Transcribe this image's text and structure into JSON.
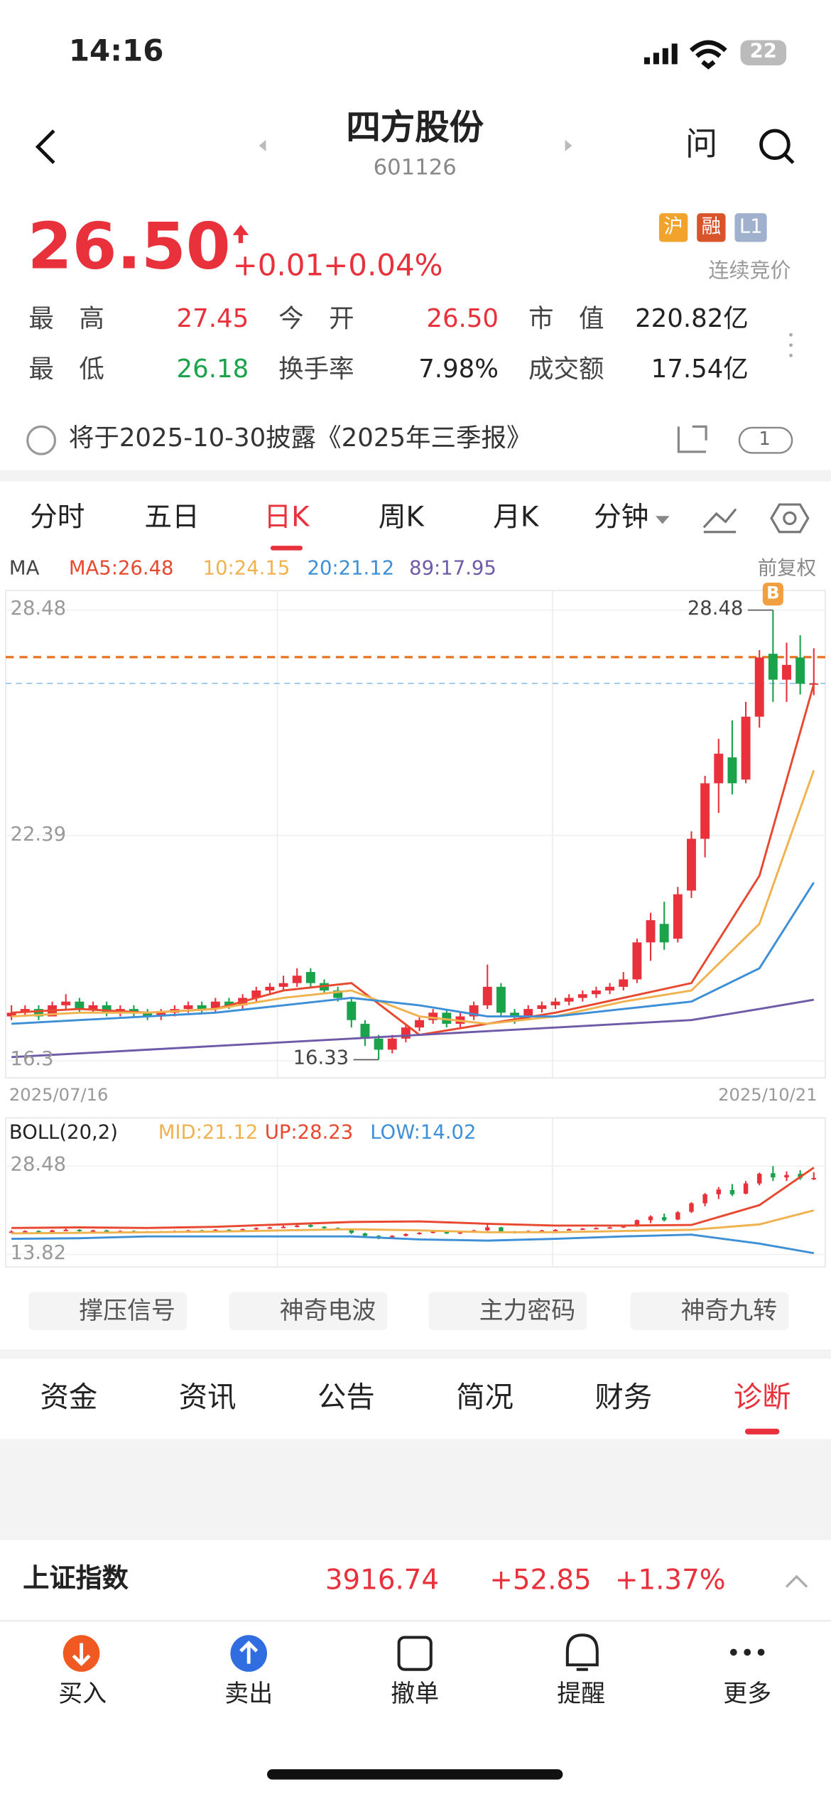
{
  "status": {
    "time": "14:16",
    "battery": "22"
  },
  "header": {
    "title": "四方股份",
    "code": "601126",
    "ask": "问"
  },
  "quote": {
    "price": "26.50",
    "change": "+0.01",
    "change_pct": "+0.04%",
    "badges": [
      "沪",
      "融",
      "L1"
    ],
    "status": "连续竞价",
    "fields": [
      {
        "label": "最　高",
        "value": "27.45"
      },
      {
        "label": "今　开",
        "value": "26.50"
      },
      {
        "label": "市　值",
        "value": "220.82亿"
      },
      {
        "label": "最　低",
        "value": "26.18"
      },
      {
        "label": "换手率",
        "value": "7.98%"
      },
      {
        "label": "成交额",
        "value": "17.54亿"
      }
    ]
  },
  "notice": {
    "text": "将于2025-10-30披露《2025年三季报》",
    "badge": "1"
  },
  "tabs": [
    "分时",
    "五日",
    "日K",
    "周K",
    "月K",
    "分钟"
  ],
  "chart_data": {
    "type": "candlestick",
    "ma_label": "MA",
    "adjust": "前复权",
    "up_color": "#e8313b",
    "down_color": "#1aa34a",
    "ylim": [
      15.84,
      29.01
    ],
    "yticks": [
      28.48,
      22.39,
      16.3
    ],
    "x": [
      "2025/07/16",
      "2025/10/21"
    ],
    "candles": [
      [
        17.5,
        17.8,
        17.4,
        17.6
      ],
      [
        17.6,
        17.8,
        17.5,
        17.7
      ],
      [
        17.7,
        17.8,
        17.4,
        17.5
      ],
      [
        17.5,
        17.9,
        17.5,
        17.8
      ],
      [
        17.8,
        18.1,
        17.7,
        17.9
      ],
      [
        17.9,
        18.0,
        17.6,
        17.7
      ],
      [
        17.7,
        17.9,
        17.6,
        17.8
      ],
      [
        17.8,
        17.9,
        17.5,
        17.6
      ],
      [
        17.6,
        17.8,
        17.5,
        17.7
      ],
      [
        17.7,
        17.8,
        17.5,
        17.6
      ],
      [
        17.6,
        17.7,
        17.4,
        17.5
      ],
      [
        17.5,
        17.7,
        17.4,
        17.6
      ],
      [
        17.6,
        17.8,
        17.5,
        17.7
      ],
      [
        17.7,
        17.9,
        17.6,
        17.8
      ],
      [
        17.8,
        17.9,
        17.6,
        17.7
      ],
      [
        17.7,
        18.0,
        17.6,
        17.9
      ],
      [
        17.9,
        18.0,
        17.7,
        17.8
      ],
      [
        17.8,
        18.1,
        17.7,
        18.0
      ],
      [
        18.0,
        18.3,
        17.9,
        18.2
      ],
      [
        18.2,
        18.4,
        18.1,
        18.3
      ],
      [
        18.3,
        18.6,
        18.2,
        18.4
      ],
      [
        18.4,
        18.8,
        18.3,
        18.6
      ],
      [
        18.7,
        18.8,
        18.3,
        18.4
      ],
      [
        18.4,
        18.5,
        18.1,
        18.2
      ],
      [
        18.2,
        18.3,
        17.9,
        18.0
      ],
      [
        17.9,
        18.0,
        17.2,
        17.4
      ],
      [
        17.3,
        17.4,
        16.7,
        16.9
      ],
      [
        16.9,
        17.0,
        16.33,
        16.6
      ],
      [
        16.6,
        17.0,
        16.5,
        16.9
      ],
      [
        16.9,
        17.3,
        16.8,
        17.2
      ],
      [
        17.2,
        17.5,
        17.1,
        17.4
      ],
      [
        17.4,
        17.7,
        17.3,
        17.6
      ],
      [
        17.6,
        17.7,
        17.2,
        17.3
      ],
      [
        17.3,
        17.6,
        17.2,
        17.5
      ],
      [
        17.5,
        17.9,
        17.4,
        17.8
      ],
      [
        17.8,
        18.9,
        17.7,
        18.3
      ],
      [
        18.3,
        18.4,
        17.5,
        17.6
      ],
      [
        17.6,
        17.7,
        17.3,
        17.5
      ],
      [
        17.5,
        17.8,
        17.4,
        17.7
      ],
      [
        17.7,
        17.9,
        17.6,
        17.8
      ],
      [
        17.8,
        18.0,
        17.7,
        17.9
      ],
      [
        17.9,
        18.1,
        17.8,
        18.0
      ],
      [
        18.0,
        18.2,
        17.9,
        18.1
      ],
      [
        18.1,
        18.3,
        18.0,
        18.2
      ],
      [
        18.2,
        18.4,
        18.1,
        18.3
      ],
      [
        18.3,
        18.7,
        18.2,
        18.5
      ],
      [
        18.5,
        19.6,
        18.4,
        19.5
      ],
      [
        19.5,
        20.3,
        19.0,
        20.1
      ],
      [
        20.0,
        20.6,
        19.3,
        19.5
      ],
      [
        19.6,
        21.0,
        19.5,
        20.8
      ],
      [
        20.9,
        22.5,
        20.7,
        22.3
      ],
      [
        22.3,
        24.0,
        21.8,
        23.8
      ],
      [
        23.8,
        25.0,
        23.0,
        24.6
      ],
      [
        24.5,
        25.5,
        23.5,
        23.8
      ],
      [
        23.9,
        26.0,
        23.8,
        25.6
      ],
      [
        25.6,
        27.4,
        25.3,
        27.2
      ],
      [
        27.3,
        28.48,
        26.0,
        26.6
      ],
      [
        26.6,
        27.6,
        26.0,
        27.0
      ],
      [
        27.2,
        27.8,
        26.2,
        26.49
      ],
      [
        26.5,
        27.45,
        26.18,
        26.5
      ]
    ],
    "ma_x": [
      0,
      5,
      10,
      15,
      20,
      25,
      30,
      35,
      40,
      45,
      50,
      55,
      59
    ],
    "ma": [
      {
        "name": "MA5:26.48",
        "color": "#e8482f",
        "values": [
          17.6,
          17.7,
          17.6,
          17.7,
          18.2,
          18.4,
          17.0,
          17.3,
          17.6,
          18.0,
          18.4,
          21.3,
          26.48
        ]
      },
      {
        "name": "10:24.15",
        "color": "#f0b24e",
        "values": [
          17.5,
          17.6,
          17.6,
          17.7,
          18.0,
          18.2,
          17.5,
          17.3,
          17.5,
          17.9,
          18.2,
          20.0,
          24.15
        ]
      },
      {
        "name": "20:21.12",
        "color": "#3d8fd6",
        "values": [
          17.3,
          17.4,
          17.5,
          17.6,
          17.8,
          18.0,
          17.8,
          17.5,
          17.5,
          17.7,
          17.9,
          18.8,
          21.12
        ]
      },
      {
        "name": "89:17.95",
        "color": "#6f5aa8",
        "values": [
          16.4,
          16.5,
          16.6,
          16.7,
          16.8,
          16.9,
          17.0,
          17.1,
          17.2,
          17.3,
          17.4,
          17.7,
          17.95
        ]
      }
    ],
    "reference_lines": [
      {
        "value": 27.21,
        "color": "#e8731e"
      },
      {
        "value": 26.5,
        "color": "#8fc0ea"
      }
    ],
    "annotations": [
      {
        "index": 56,
        "label": "28.48",
        "marker": "B"
      },
      {
        "index": 27,
        "label": "16.33"
      }
    ],
    "boll": {
      "label": "BOLL(20,2)",
      "ylim": [
        11.72,
        36.48
      ],
      "yticks": [
        28.48,
        13.82
      ],
      "lines": [
        {
          "name": "MID:21.12",
          "color": "#f0b24e",
          "values": [
            17.3,
            17.4,
            17.5,
            17.6,
            17.8,
            18.0,
            17.8,
            17.5,
            17.5,
            17.7,
            17.9,
            18.8,
            21.12
          ]
        },
        {
          "name": "UP:28.23",
          "color": "#e8482f",
          "values": [
            18.2,
            18.3,
            18.2,
            18.4,
            18.8,
            19.2,
            19.3,
            18.9,
            18.6,
            18.6,
            18.7,
            22.0,
            28.23
          ]
        },
        {
          "name": "LOW:14.02",
          "color": "#3d8fd6",
          "values": [
            16.4,
            16.5,
            16.8,
            16.8,
            16.8,
            16.8,
            16.3,
            16.1,
            16.4,
            16.8,
            17.1,
            15.6,
            14.02
          ]
        }
      ]
    }
  },
  "features": [
    "撑压信号",
    "神奇电波",
    "主力密码",
    "神奇九转"
  ],
  "sections": [
    "资金",
    "资讯",
    "公告",
    "简况",
    "财务",
    "诊断"
  ],
  "index": {
    "name": "上证指数",
    "value": "3916.74",
    "change": "+52.85",
    "pct": "+1.37%"
  },
  "bottom_nav": [
    "买入",
    "卖出",
    "撤单",
    "提醒",
    "更多"
  ]
}
